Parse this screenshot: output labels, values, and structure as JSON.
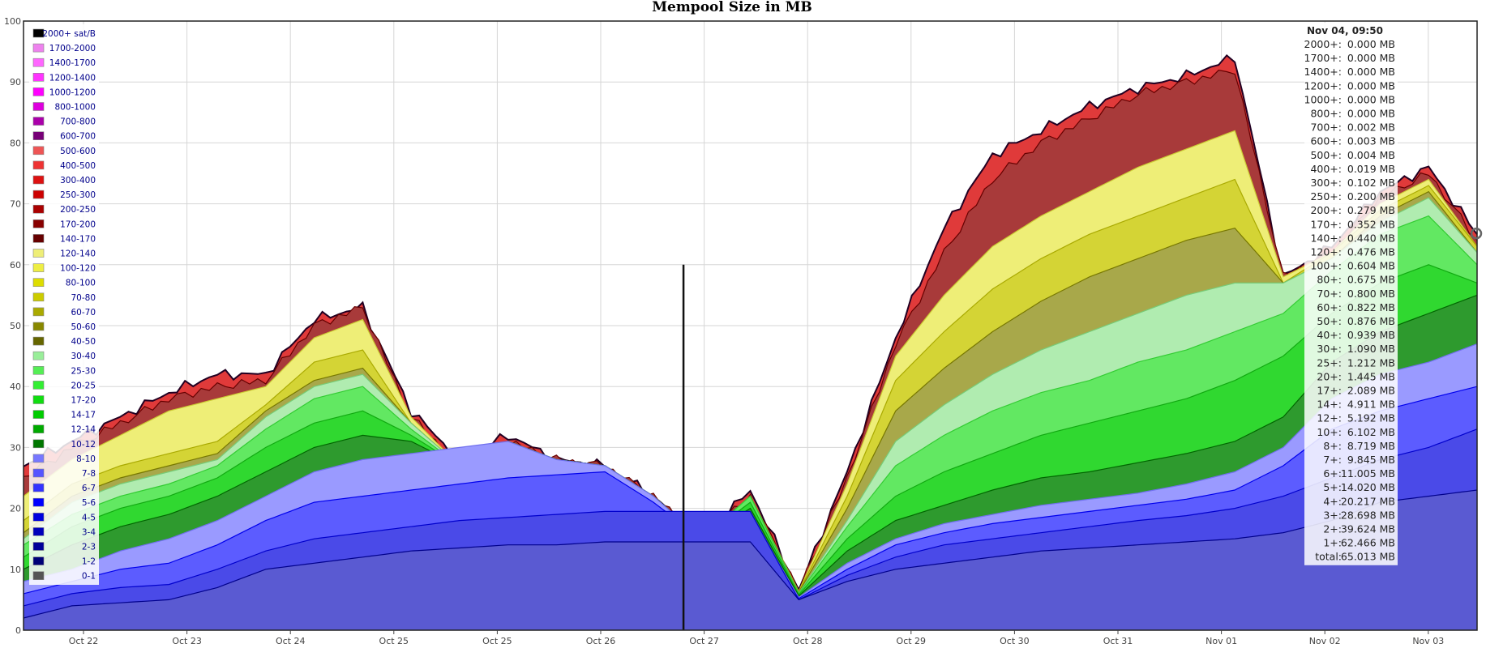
{
  "chart_data": {
    "type": "area",
    "title": "Mempool Size in MB",
    "xlabel": "",
    "ylabel": "",
    "ylim": [
      0,
      100
    ],
    "yticks": [
      0,
      10,
      20,
      30,
      40,
      50,
      60,
      70,
      80,
      90,
      100
    ],
    "x_tick_labels": [
      "Oct 22",
      "Oct 23",
      "Oct 24",
      "Oct 25",
      "Oct 25",
      "Oct 26",
      "Oct 27",
      "Oct 28",
      "Oct 29",
      "Oct 30",
      "Oct 31",
      "Nov 01",
      "Nov 02",
      "Nov 03"
    ],
    "grid": true,
    "stacked": true,
    "legend_position": "top-left",
    "legend": [
      {
        "label": "2000+ sat/B",
        "color": "#000000"
      },
      {
        "label": "1700-2000",
        "color": "#ee82ee"
      },
      {
        "label": "1400-1700",
        "color": "#ff66ff"
      },
      {
        "label": "1200-1400",
        "color": "#ff33ff"
      },
      {
        "label": "1000-1200",
        "color": "#ff00ff"
      },
      {
        "label": "800-1000",
        "color": "#dd00dd"
      },
      {
        "label": "700-800",
        "color": "#aa00aa"
      },
      {
        "label": "600-700",
        "color": "#770077"
      },
      {
        "label": "500-600",
        "color": "#ee5555"
      },
      {
        "label": "400-500",
        "color": "#ee3333"
      },
      {
        "label": "300-400",
        "color": "#dd1111"
      },
      {
        "label": "250-300",
        "color": "#cc0000"
      },
      {
        "label": "200-250",
        "color": "#aa0000"
      },
      {
        "label": "170-200",
        "color": "#880000"
      },
      {
        "label": "140-170",
        "color": "#660000"
      },
      {
        "label": "120-140",
        "color": "#eeee77"
      },
      {
        "label": "100-120",
        "color": "#eeee44"
      },
      {
        "label": "80-100",
        "color": "#dddd00"
      },
      {
        "label": "70-80",
        "color": "#cccc00"
      },
      {
        "label": "60-70",
        "color": "#aaaa00"
      },
      {
        "label": "50-60",
        "color": "#888800"
      },
      {
        "label": "40-50",
        "color": "#666600"
      },
      {
        "label": "30-40",
        "color": "#99ee99"
      },
      {
        "label": "25-30",
        "color": "#55ee55"
      },
      {
        "label": "20-25",
        "color": "#33ee33"
      },
      {
        "label": "17-20",
        "color": "#11dd11"
      },
      {
        "label": "14-17",
        "color": "#00cc00"
      },
      {
        "label": "12-14",
        "color": "#00aa00"
      },
      {
        "label": "10-12",
        "color": "#007700"
      },
      {
        "label": "8-10",
        "color": "#7777ff"
      },
      {
        "label": "7-8",
        "color": "#5555ff"
      },
      {
        "label": "6-7",
        "color": "#3333ff"
      },
      {
        "label": "5-6",
        "color": "#0000ff"
      },
      {
        "label": "4-5",
        "color": "#0000dd"
      },
      {
        "label": "3-4",
        "color": "#0000bb"
      },
      {
        "label": "2-3",
        "color": "#000099"
      },
      {
        "label": "1-2",
        "color": "#000077"
      },
      {
        "label": "0-1",
        "color": "#555555"
      }
    ],
    "bands": [
      {
        "name": "1-2",
        "fill": "#5a5ad2",
        "edge": "#00008b",
        "values": [
          2,
          4,
          4.5,
          5,
          7,
          10,
          11,
          12,
          13,
          13.5,
          14,
          14,
          14.5,
          14.5,
          14.5,
          14.5,
          5,
          8,
          10,
          11,
          12,
          13,
          13.5,
          14,
          14.5,
          15,
          16,
          18,
          21,
          22,
          23
        ]
      },
      {
        "name": "3-4",
        "fill": "#4a4ae8",
        "edge": "#0000cc",
        "values": [
          4,
          6,
          7,
          7.5,
          10,
          13,
          15,
          16,
          17,
          18,
          18.5,
          19,
          19.5,
          19.5,
          19.5,
          19.5,
          5,
          9,
          12,
          14,
          15,
          16,
          17,
          18,
          18.8,
          20,
          22,
          25,
          28,
          30,
          33
        ]
      },
      {
        "name": "6-7",
        "fill": "#5c5cff",
        "edge": "#0000ee",
        "values": [
          6,
          8,
          10,
          11,
          14,
          18,
          21,
          22,
          23,
          24,
          25,
          25.5,
          26,
          21,
          15,
          17,
          5.2,
          10,
          14,
          16,
          17.5,
          18.5,
          19.5,
          20.5,
          21.5,
          23,
          27,
          33,
          36,
          38,
          40
        ]
      },
      {
        "name": "8-10",
        "fill": "#9a9aff",
        "edge": "#7070ee",
        "values": [
          8,
          10,
          13,
          15,
          18,
          22,
          26,
          28,
          29,
          30,
          31,
          28,
          27,
          22,
          15,
          19,
          5.4,
          11,
          15,
          17.5,
          19,
          20.5,
          21.5,
          22.5,
          24,
          26,
          30,
          38,
          42,
          44,
          47
        ]
      },
      {
        "name": "10-12",
        "fill": "#2e9a2e",
        "edge": "#006600",
        "values": [
          10,
          14,
          17,
          19,
          22,
          26,
          30,
          32,
          31,
          27,
          30,
          28,
          27,
          22,
          15,
          20,
          5.6,
          13,
          18,
          20.5,
          23,
          25,
          26,
          27.5,
          29,
          31,
          35,
          44,
          49,
          52,
          55
        ]
      },
      {
        "name": "14-17",
        "fill": "#30d830",
        "edge": "#11aa11",
        "values": [
          12,
          17,
          20,
          22,
          25,
          30,
          34,
          36,
          32,
          27,
          31,
          28,
          27,
          22,
          15,
          21,
          5.8,
          15,
          22,
          26,
          29,
          32,
          34,
          36,
          38,
          41,
          45,
          52,
          57,
          60,
          57
        ]
      },
      {
        "name": "20-25",
        "fill": "#62e862",
        "edge": "#33cc33",
        "values": [
          14,
          19,
          22,
          24,
          27,
          33,
          38,
          40,
          33,
          27,
          31,
          28,
          27,
          22,
          15,
          22,
          6,
          17,
          27,
          32,
          36,
          39,
          41,
          44,
          46,
          49,
          52,
          59,
          65,
          68,
          60
        ]
      },
      {
        "name": "30-40",
        "fill": "#b0ecb0",
        "edge": "#77cc77",
        "values": [
          15,
          21,
          24,
          26,
          28,
          35,
          40,
          42,
          34,
          27,
          31,
          28,
          27,
          22,
          15,
          22,
          6.1,
          18,
          31,
          37,
          42,
          46,
          49,
          52,
          55,
          57,
          57,
          61,
          67,
          71,
          62
        ]
      },
      {
        "name": "50-60",
        "fill": "#a8a84a",
        "edge": "#777700",
        "values": [
          16,
          22,
          25,
          27,
          29,
          36,
          41,
          43,
          34,
          27,
          31,
          28,
          27,
          22,
          15,
          22,
          6.2,
          20,
          36,
          43,
          49,
          54,
          58,
          61,
          64,
          66,
          57,
          61,
          68,
          72,
          62
        ]
      },
      {
        "name": "70-80",
        "fill": "#d4d435",
        "edge": "#aaaa00",
        "values": [
          18,
          24,
          27,
          29,
          31,
          37,
          44,
          46,
          34,
          27,
          31,
          28,
          27,
          22,
          15,
          22,
          6.3,
          22,
          41,
          49,
          56,
          61,
          65,
          68,
          71,
          74,
          57,
          62,
          69,
          73,
          63
        ]
      },
      {
        "name": "100-120",
        "fill": "#eeee77",
        "edge": "#cccc33",
        "values": [
          22,
          28,
          32,
          36,
          38,
          40,
          48,
          51,
          35,
          27,
          31,
          28,
          27,
          22,
          15,
          22,
          6.4,
          24,
          45,
          55,
          63,
          68,
          72,
          76,
          79,
          82,
          58,
          62,
          70,
          74,
          63
        ]
      },
      {
        "name": "140-170",
        "fill": "#a83a3a",
        "edge": "#660000",
        "values": [
          25,
          30,
          34,
          38,
          40,
          41,
          50,
          53,
          35,
          27,
          31,
          28,
          27,
          22,
          15,
          22,
          6.5,
          25,
          47,
          62,
          74,
          80,
          84,
          88,
          90,
          92,
          58,
          62,
          71,
          75,
          64
        ]
      },
      {
        "name": "total",
        "fill": "#e03a3a",
        "edge": "#220022",
        "values": [
          27,
          31,
          35,
          39,
          42,
          42,
          51,
          53,
          36,
          28,
          32,
          28,
          27,
          22,
          15,
          23,
          6.6,
          26,
          48,
          66,
          78,
          82,
          86,
          89,
          91,
          94,
          58,
          63,
          72,
          76,
          65
        ]
      }
    ],
    "tooltip": {
      "header": "Nov 04, 09:50",
      "rows": [
        {
          "label": "2000+:",
          "value": "0.000 MB"
        },
        {
          "label": "1700+:",
          "value": "0.000 MB"
        },
        {
          "label": "1400+:",
          "value": "0.000 MB"
        },
        {
          "label": "1200+:",
          "value": "0.000 MB"
        },
        {
          "label": "1000+:",
          "value": "0.000 MB"
        },
        {
          "label": "800+:",
          "value": "0.000 MB"
        },
        {
          "label": "700+:",
          "value": "0.002 MB"
        },
        {
          "label": "600+:",
          "value": "0.003 MB"
        },
        {
          "label": "500+:",
          "value": "0.004 MB"
        },
        {
          "label": "400+:",
          "value": "0.019 MB"
        },
        {
          "label": "300+:",
          "value": "0.102 MB"
        },
        {
          "label": "250+:",
          "value": "0.200 MB"
        },
        {
          "label": "200+:",
          "value": "0.279 MB"
        },
        {
          "label": "170+:",
          "value": "0.352 MB"
        },
        {
          "label": "140+:",
          "value": "0.440 MB"
        },
        {
          "label": "120+:",
          "value": "0.476 MB"
        },
        {
          "label": "100+:",
          "value": "0.604 MB"
        },
        {
          "label": "80+:",
          "value": "0.675 MB"
        },
        {
          "label": "70+:",
          "value": "0.800 MB"
        },
        {
          "label": "60+:",
          "value": "0.822 MB"
        },
        {
          "label": "50+:",
          "value": "0.876 MB"
        },
        {
          "label": "40+:",
          "value": "0.939 MB"
        },
        {
          "label": "30+:",
          "value": "1.090 MB"
        },
        {
          "label": "25+:",
          "value": "1.212 MB"
        },
        {
          "label": "20+:",
          "value": "1.445 MB"
        },
        {
          "label": "17+:",
          "value": "2.089 MB"
        },
        {
          "label": "14+:",
          "value": "4.911 MB"
        },
        {
          "label": "12+:",
          "value": "5.192 MB"
        },
        {
          "label": "10+:",
          "value": "6.102 MB"
        },
        {
          "label": "8+:",
          "value": "8.719 MB"
        },
        {
          "label": "7+:",
          "value": "9.845 MB"
        },
        {
          "label": "6+:",
          "value": "11.005 MB"
        },
        {
          "label": "5+:",
          "value": "14.020 MB"
        },
        {
          "label": "4+:",
          "value": "20.217 MB"
        },
        {
          "label": "3+:",
          "value": "28.698 MB"
        },
        {
          "label": "2+:",
          "value": "39.624 MB"
        },
        {
          "label": "1+:",
          "value": "62.466 MB"
        },
        {
          "label": "total:",
          "value": "65.013 MB"
        }
      ]
    }
  }
}
